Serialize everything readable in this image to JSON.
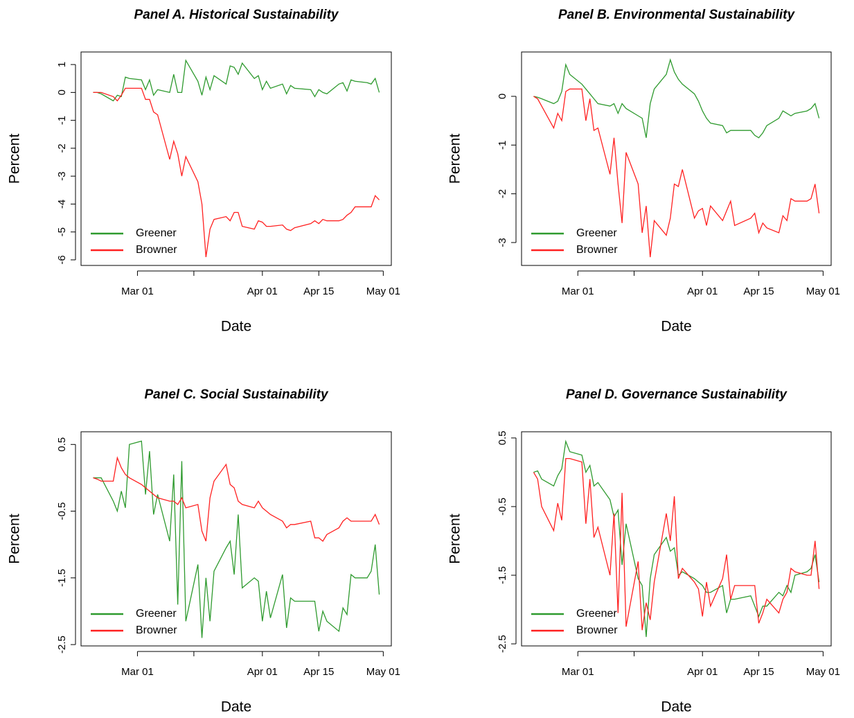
{
  "chart_data": [
    {
      "type": "line",
      "title": "Panel A. Historical Sustainability",
      "xlabel": "Date",
      "ylabel": "Percent",
      "x": [
        "02-19",
        "02-20",
        "02-21",
        "02-24",
        "02-25",
        "02-26",
        "02-27",
        "02-28",
        "03-02",
        "03-03",
        "03-04",
        "03-05",
        "03-06",
        "03-09",
        "03-10",
        "03-11",
        "03-12",
        "03-13",
        "03-16",
        "03-17",
        "03-18",
        "03-19",
        "03-20",
        "03-23",
        "03-24",
        "03-25",
        "03-26",
        "03-27",
        "03-30",
        "03-31",
        "04-01",
        "04-02",
        "04-03",
        "04-06",
        "04-07",
        "04-08",
        "04-09",
        "04-13",
        "04-14",
        "04-15",
        "04-16",
        "04-17",
        "04-20",
        "04-21",
        "04-22",
        "04-23",
        "04-24",
        "04-27",
        "04-28",
        "04-29",
        "04-30"
      ],
      "xlim": [
        "02-16",
        "05-03"
      ],
      "xticks": [
        {
          "value": "03-01",
          "label": "Mar 01"
        },
        {
          "value": "03-15",
          "label": null
        },
        {
          "value": "04-01",
          "label": "Apr 01"
        },
        {
          "value": "04-15",
          "label": "Apr 15"
        },
        {
          "value": "05-01",
          "label": "May 01"
        }
      ],
      "ylim": [
        -6.2,
        1.45
      ],
      "yticks": [
        -6,
        -5,
        -4,
        -3,
        -2,
        -1,
        0,
        1
      ],
      "legend": "bottomleft",
      "series": [
        {
          "name": "Greener",
          "color": "#2e9a2e",
          "values": [
            0,
            0,
            -0.05,
            -0.3,
            -0.1,
            -0.15,
            0.55,
            0.5,
            0.45,
            0.1,
            0.45,
            -0.1,
            0.1,
            0,
            0.65,
            0,
            0,
            1.15,
            0.4,
            -0.1,
            0.55,
            0.1,
            0.6,
            0.3,
            0.95,
            0.9,
            0.65,
            1.05,
            0.5,
            0.6,
            0.1,
            0.4,
            0.15,
            0.3,
            -0.05,
            0.25,
            0.15,
            0.1,
            -0.15,
            0.1,
            0,
            -0.05,
            0.3,
            0.35,
            0.05,
            0.45,
            0.4,
            0.35,
            0.3,
            0.5,
            0
          ]
        },
        {
          "name": "Browner",
          "color": "#ff2020",
          "values": [
            0,
            0,
            0,
            -0.15,
            -0.3,
            -0.1,
            0.15,
            0.15,
            0.15,
            -0.25,
            -0.25,
            -0.7,
            -0.8,
            -2.4,
            -1.75,
            -2.2,
            -3.0,
            -2.3,
            -3.2,
            -4.0,
            -5.9,
            -4.9,
            -4.55,
            -4.45,
            -4.6,
            -4.3,
            -4.3,
            -4.8,
            -4.9,
            -4.6,
            -4.65,
            -4.8,
            -4.8,
            -4.75,
            -4.9,
            -4.95,
            -4.85,
            -4.7,
            -4.6,
            -4.7,
            -4.55,
            -4.6,
            -4.6,
            -4.55,
            -4.4,
            -4.3,
            -4.1,
            -4.1,
            -4.1,
            -3.7,
            -3.85
          ]
        }
      ]
    },
    {
      "type": "line",
      "title": "Panel B. Environmental Sustainability",
      "xlabel": "Date",
      "ylabel": "Percent",
      "x": [
        "02-19",
        "02-20",
        "02-21",
        "02-24",
        "02-25",
        "02-26",
        "02-27",
        "02-28",
        "03-02",
        "03-03",
        "03-04",
        "03-05",
        "03-06",
        "03-09",
        "03-10",
        "03-11",
        "03-12",
        "03-13",
        "03-16",
        "03-17",
        "03-18",
        "03-19",
        "03-20",
        "03-23",
        "03-24",
        "03-25",
        "03-26",
        "03-27",
        "03-30",
        "03-31",
        "04-01",
        "04-02",
        "04-03",
        "04-06",
        "04-07",
        "04-08",
        "04-09",
        "04-13",
        "04-14",
        "04-15",
        "04-16",
        "04-17",
        "04-20",
        "04-21",
        "04-22",
        "04-23",
        "04-24",
        "04-27",
        "04-28",
        "04-29",
        "04-30"
      ],
      "xlim": [
        "02-16",
        "05-03"
      ],
      "xticks": [
        {
          "value": "03-01",
          "label": "Mar 01"
        },
        {
          "value": "03-15",
          "label": null
        },
        {
          "value": "04-01",
          "label": "Apr 01"
        },
        {
          "value": "04-15",
          "label": "Apr 15"
        },
        {
          "value": "05-01",
          "label": "May 01"
        }
      ],
      "ylim": [
        -3.47,
        0.91
      ],
      "yticks": [
        -3,
        -2,
        -1,
        0
      ],
      "legend": "bottomleft",
      "series": [
        {
          "name": "Greener",
          "color": "#2e9a2e",
          "values": [
            0,
            -0.02,
            -0.05,
            -0.15,
            -0.1,
            0.1,
            0.65,
            0.45,
            0.25,
            0.15,
            0.05,
            -0.05,
            -0.15,
            -0.2,
            -0.15,
            -0.35,
            -0.15,
            -0.25,
            -0.4,
            -0.45,
            -0.85,
            -0.15,
            0.15,
            0.45,
            0.75,
            0.5,
            0.35,
            0.25,
            0.05,
            -0.1,
            -0.3,
            -0.45,
            -0.55,
            -0.6,
            -0.75,
            -0.7,
            -0.7,
            -0.7,
            -0.8,
            -0.85,
            -0.75,
            -0.6,
            -0.45,
            -0.3,
            -0.35,
            -0.4,
            -0.35,
            -0.3,
            -0.25,
            -0.15,
            -0.45
          ]
        },
        {
          "name": "Browner",
          "color": "#ff2020",
          "values": [
            0,
            -0.05,
            -0.2,
            -0.65,
            -0.35,
            -0.5,
            0.1,
            0.15,
            0.15,
            -0.5,
            -0.05,
            -0.7,
            -0.65,
            -1.6,
            -0.85,
            -1.8,
            -2.6,
            -1.15,
            -1.8,
            -2.8,
            -2.25,
            -3.3,
            -2.55,
            -2.85,
            -2.5,
            -1.8,
            -1.85,
            -1.5,
            -2.5,
            -2.35,
            -2.3,
            -2.65,
            -2.25,
            -2.55,
            -2.35,
            -2.15,
            -2.65,
            -2.5,
            -2.4,
            -2.8,
            -2.6,
            -2.7,
            -2.8,
            -2.45,
            -2.55,
            -2.1,
            -2.15,
            -2.15,
            -2.1,
            -1.8,
            -2.4
          ]
        }
      ]
    },
    {
      "type": "line",
      "title": "Panel C. Social Sustainability",
      "xlabel": "Date",
      "ylabel": "Percent",
      "x": [
        "02-19",
        "02-20",
        "02-21",
        "02-24",
        "02-25",
        "02-26",
        "02-27",
        "02-28",
        "03-02",
        "03-03",
        "03-04",
        "03-05",
        "03-06",
        "03-09",
        "03-10",
        "03-11",
        "03-12",
        "03-13",
        "03-16",
        "03-17",
        "03-18",
        "03-19",
        "03-20",
        "03-23",
        "03-24",
        "03-25",
        "03-26",
        "03-27",
        "03-30",
        "03-31",
        "04-01",
        "04-02",
        "04-03",
        "04-06",
        "04-07",
        "04-08",
        "04-09",
        "04-13",
        "04-14",
        "04-15",
        "04-16",
        "04-17",
        "04-20",
        "04-21",
        "04-22",
        "04-23",
        "04-24",
        "04-27",
        "04-28",
        "04-29",
        "04-30"
      ],
      "xlim": [
        "02-16",
        "05-03"
      ],
      "xticks": [
        {
          "value": "03-01",
          "label": "Mar 01"
        },
        {
          "value": "03-15",
          "label": null
        },
        {
          "value": "04-01",
          "label": "Apr 01"
        },
        {
          "value": "04-15",
          "label": "Apr 15"
        },
        {
          "value": "05-01",
          "label": "May 01"
        }
      ],
      "ylim": [
        -2.52,
        0.69
      ],
      "yticks": [
        -2.5,
        -1.5,
        -0.5,
        0.5
      ],
      "legend": "bottomleft",
      "series": [
        {
          "name": "Greener",
          "color": "#2e9a2e",
          "values": [
            0,
            0,
            0,
            -0.35,
            -0.5,
            -0.2,
            -0.45,
            0.5,
            0.55,
            -0.25,
            0.4,
            -0.55,
            -0.25,
            -0.95,
            0.05,
            -1.9,
            0.25,
            -2.15,
            -1.3,
            -2.4,
            -1.5,
            -2.15,
            -1.4,
            -1.05,
            -0.95,
            -1.45,
            -0.55,
            -1.65,
            -1.5,
            -1.55,
            -2.15,
            -1.7,
            -2.1,
            -1.45,
            -2.25,
            -1.8,
            -1.85,
            -1.85,
            -1.85,
            -2.3,
            -2.0,
            -2.15,
            -2.3,
            -1.95,
            -2.05,
            -1.45,
            -1.5,
            -1.5,
            -1.4,
            -1.0,
            -1.75
          ]
        },
        {
          "name": "Browner",
          "color": "#ff2020",
          "values": [
            0,
            -0.02,
            -0.05,
            -0.05,
            0.3,
            0.15,
            0.05,
            0,
            -0.1,
            -0.15,
            -0.2,
            -0.25,
            -0.3,
            -0.35,
            -0.35,
            -0.4,
            -0.3,
            -0.45,
            -0.4,
            -0.8,
            -0.95,
            -0.3,
            -0.05,
            0.2,
            -0.1,
            -0.15,
            -0.35,
            -0.4,
            -0.45,
            -0.35,
            -0.45,
            -0.5,
            -0.55,
            -0.65,
            -0.75,
            -0.7,
            -0.7,
            -0.65,
            -0.9,
            -0.9,
            -0.95,
            -0.85,
            -0.75,
            -0.65,
            -0.6,
            -0.65,
            -0.65,
            -0.65,
            -0.65,
            -0.55,
            -0.7
          ]
        }
      ]
    },
    {
      "type": "line",
      "title": "Panel D. Governance Sustainability",
      "xlabel": "Date",
      "ylabel": "Percent",
      "x": [
        "02-19",
        "02-20",
        "02-21",
        "02-24",
        "02-25",
        "02-26",
        "02-27",
        "02-28",
        "03-02",
        "03-03",
        "03-04",
        "03-05",
        "03-06",
        "03-09",
        "03-10",
        "03-11",
        "03-12",
        "03-13",
        "03-16",
        "03-17",
        "03-18",
        "03-19",
        "03-20",
        "03-23",
        "03-24",
        "03-25",
        "03-26",
        "03-27",
        "03-30",
        "03-31",
        "04-01",
        "04-02",
        "04-03",
        "04-06",
        "04-07",
        "04-08",
        "04-09",
        "04-13",
        "04-14",
        "04-15",
        "04-16",
        "04-17",
        "04-20",
        "04-21",
        "04-22",
        "04-23",
        "04-24",
        "04-27",
        "04-28",
        "04-29",
        "04-30"
      ],
      "xlim": [
        "02-16",
        "05-03"
      ],
      "xticks": [
        {
          "value": "03-01",
          "label": "Mar 01"
        },
        {
          "value": "03-15",
          "label": null
        },
        {
          "value": "04-01",
          "label": "Apr 01"
        },
        {
          "value": "04-15",
          "label": "Apr 15"
        },
        {
          "value": "05-01",
          "label": "May 01"
        }
      ],
      "ylim": [
        -2.53,
        0.59
      ],
      "yticks": [
        -2.5,
        -1.5,
        -0.5,
        0.5
      ],
      "legend": "bottomleft",
      "series": [
        {
          "name": "Greener",
          "color": "#2e9a2e",
          "values": [
            0,
            0.02,
            -0.1,
            -0.2,
            -0.05,
            0.05,
            0.45,
            0.3,
            0.25,
            0,
            0.1,
            -0.2,
            -0.15,
            -0.4,
            -0.65,
            -0.55,
            -1.35,
            -0.75,
            -1.55,
            -1.65,
            -2.4,
            -1.55,
            -1.2,
            -0.95,
            -1.15,
            -1.1,
            -1.5,
            -1.45,
            -1.55,
            -1.6,
            -1.65,
            -1.75,
            -1.75,
            -1.65,
            -2.05,
            -1.85,
            -1.85,
            -1.8,
            -1.95,
            -2.1,
            -1.95,
            -1.95,
            -1.75,
            -1.8,
            -1.65,
            -1.75,
            -1.5,
            -1.45,
            -1.4,
            -1.2,
            -1.6
          ]
        },
        {
          "name": "Browner",
          "color": "#ff2020",
          "values": [
            0,
            -0.1,
            -0.5,
            -0.85,
            -0.45,
            -0.7,
            0.2,
            0.2,
            0.15,
            -0.75,
            -0.1,
            -0.95,
            -0.8,
            -1.5,
            -0.6,
            -2.05,
            -0.3,
            -2.25,
            -1.3,
            -2.3,
            -1.9,
            -2.15,
            -1.6,
            -0.6,
            -1.0,
            -0.35,
            -1.55,
            -1.4,
            -1.6,
            -1.7,
            -2.1,
            -1.6,
            -1.95,
            -1.55,
            -1.2,
            -1.85,
            -1.65,
            -1.65,
            -1.65,
            -2.2,
            -2.05,
            -1.85,
            -2.05,
            -1.85,
            -1.75,
            -1.4,
            -1.45,
            -1.5,
            -1.5,
            -1.0,
            -1.7
          ]
        }
      ]
    }
  ]
}
